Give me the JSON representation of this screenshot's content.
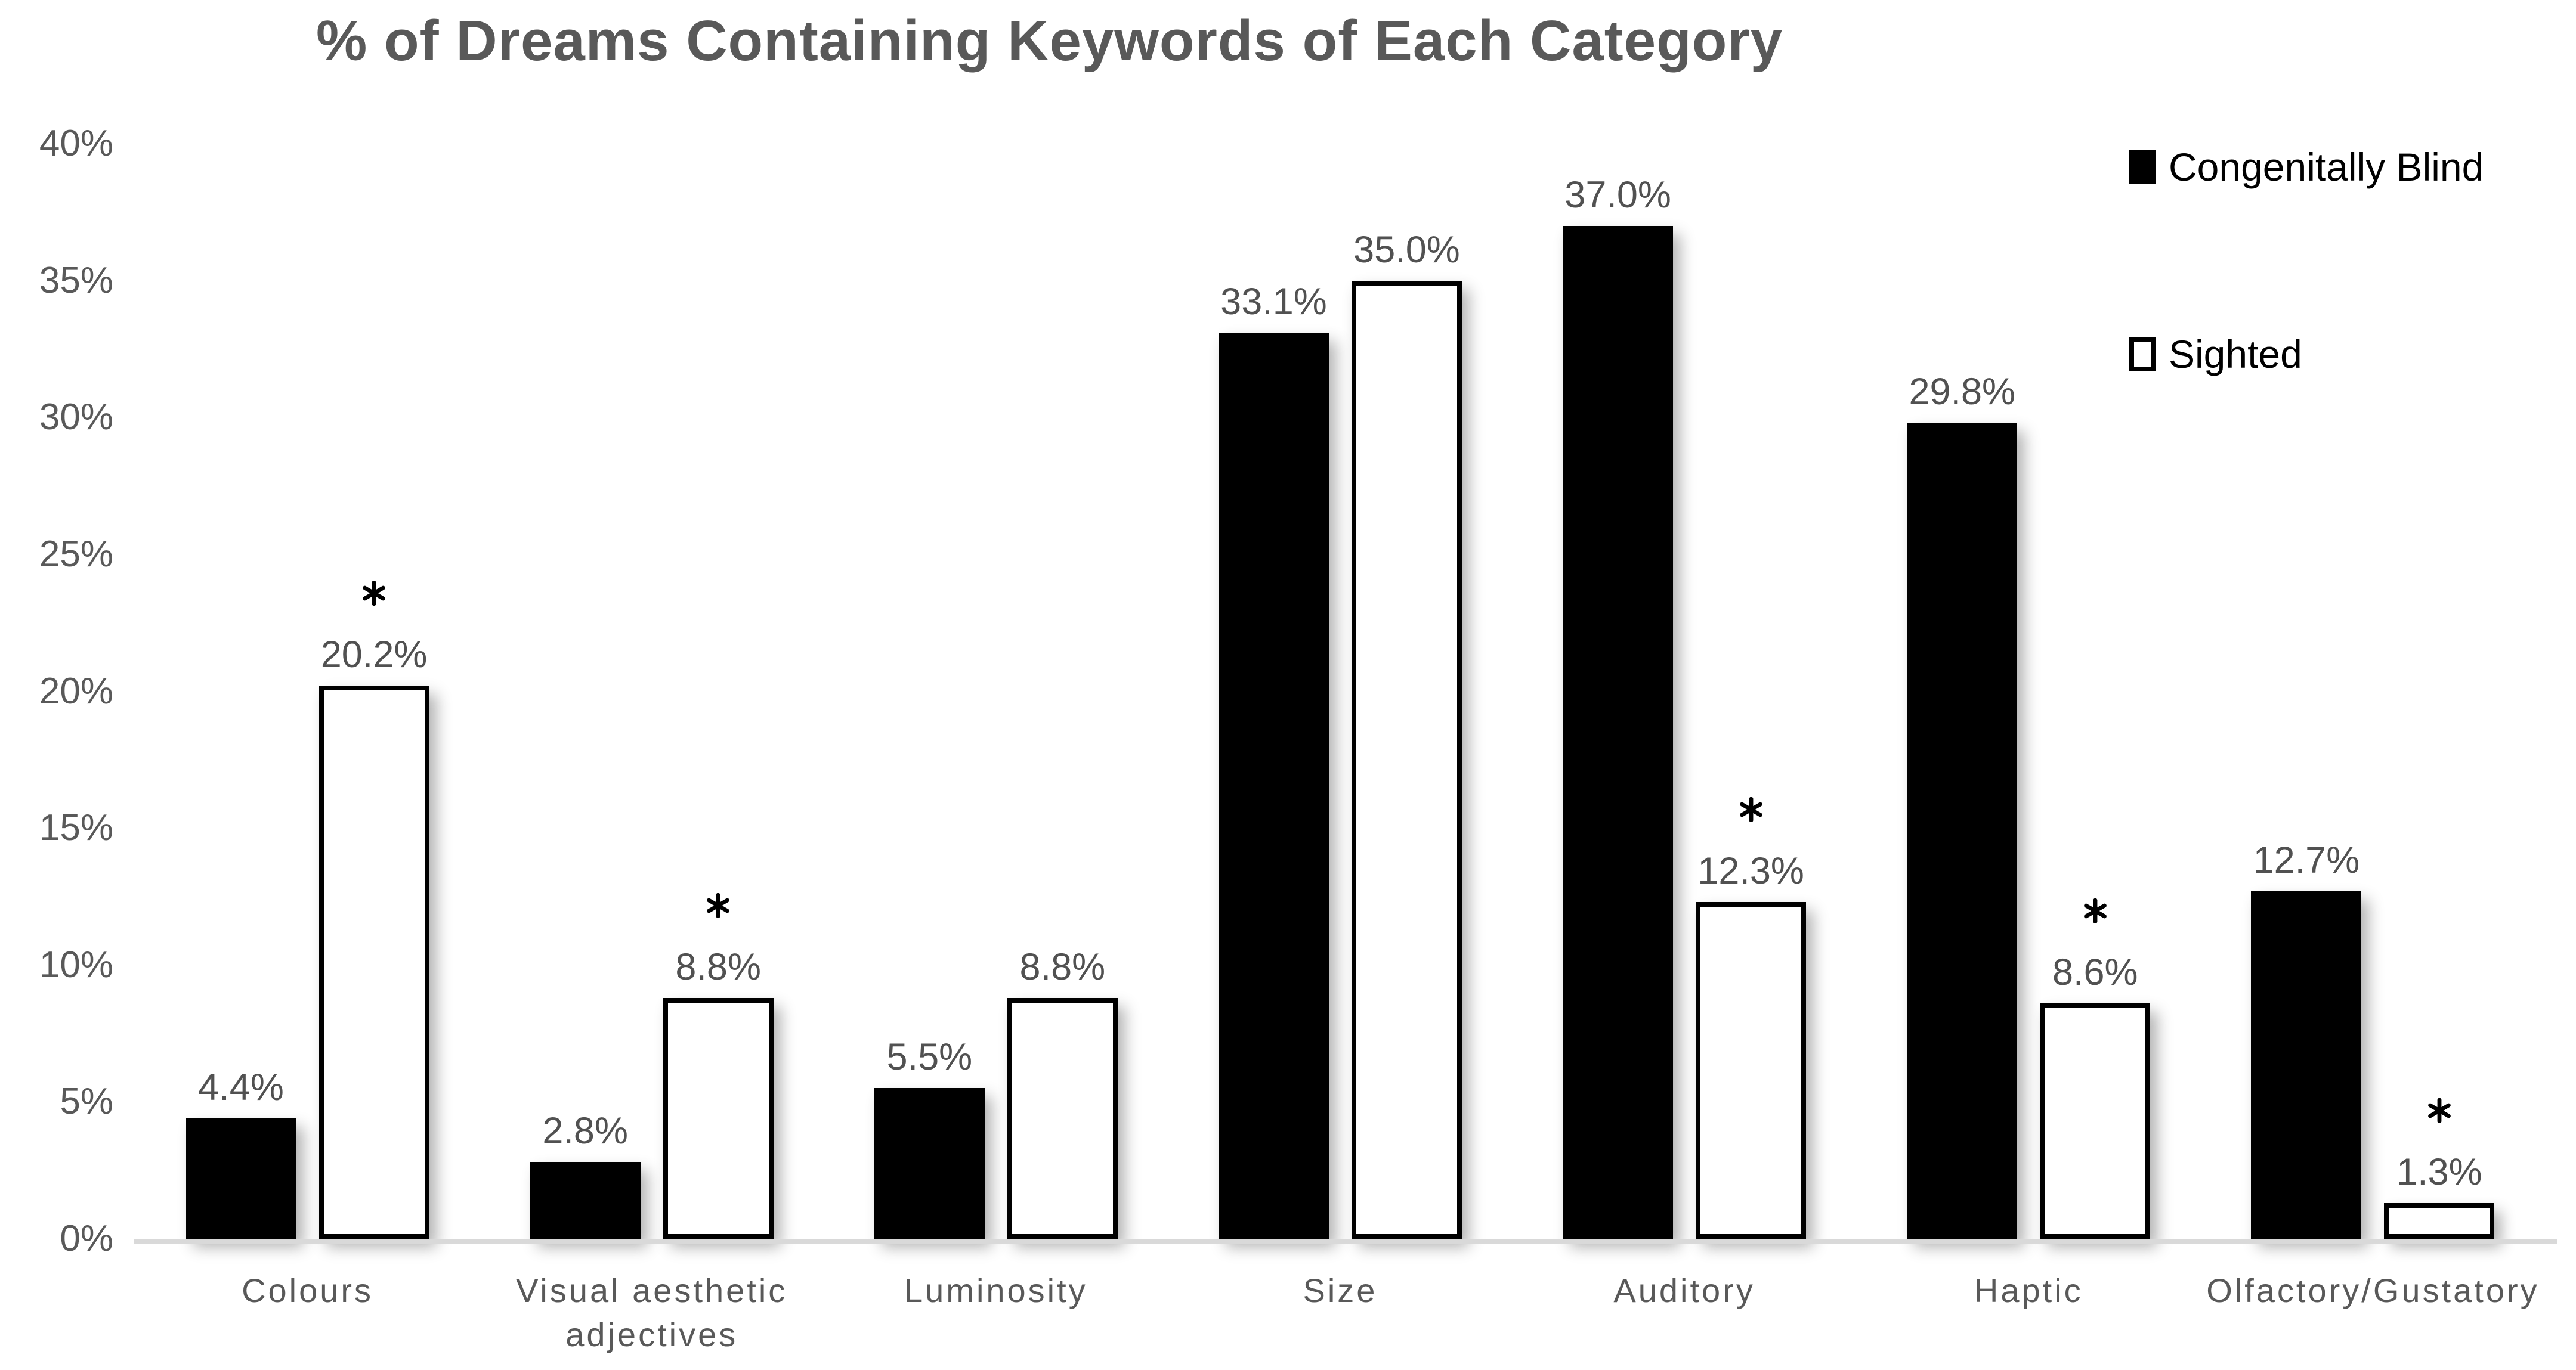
{
  "chart_data": {
    "type": "bar",
    "title": "% of Dreams Containing Keywords of Each Category",
    "categories": [
      "Colours",
      "Visual aesthetic adjectives",
      "Luminosity",
      "Size",
      "Auditory",
      "Haptic",
      "Olfactory/Gustatory"
    ],
    "series": [
      {
        "name": "Congenitally Blind",
        "fill": "#000000",
        "values": [
          4.4,
          2.8,
          5.5,
          33.1,
          37.0,
          29.8,
          12.7
        ],
        "labels": [
          "4.4%",
          "2.8%",
          "5.5%",
          "33.1%",
          "37.0%",
          "29.8%",
          "12.7%"
        ],
        "significance": [
          false,
          false,
          false,
          false,
          false,
          false,
          false
        ]
      },
      {
        "name": "Sighted",
        "fill": "#ffffff",
        "values": [
          20.2,
          8.8,
          8.8,
          35.0,
          12.3,
          8.6,
          1.3
        ],
        "labels": [
          "20.2%",
          "8.8%",
          "8.8%",
          "35.0%",
          "12.3%",
          "8.6%",
          "1.3%"
        ],
        "significance": [
          true,
          true,
          false,
          false,
          true,
          true,
          true
        ]
      }
    ],
    "y_axis": {
      "min": 0,
      "max": 40,
      "ticks": [
        "0%",
        "5%",
        "10%",
        "15%",
        "20%",
        "25%",
        "30%",
        "35%",
        "40%"
      ],
      "grid": false
    },
    "xlabel": "",
    "ylabel": "",
    "legend_position": "top-right",
    "significance_marker": "*"
  },
  "colors": {
    "title_text": "#595959",
    "axis_text": "#595959",
    "data_label_text": "#515151",
    "bar_fill_blind": "#000000",
    "bar_fill_sighted": "#ffffff",
    "bar_border": "#000000",
    "baseline": "#d9d9d9",
    "legend_text": "#000000"
  }
}
